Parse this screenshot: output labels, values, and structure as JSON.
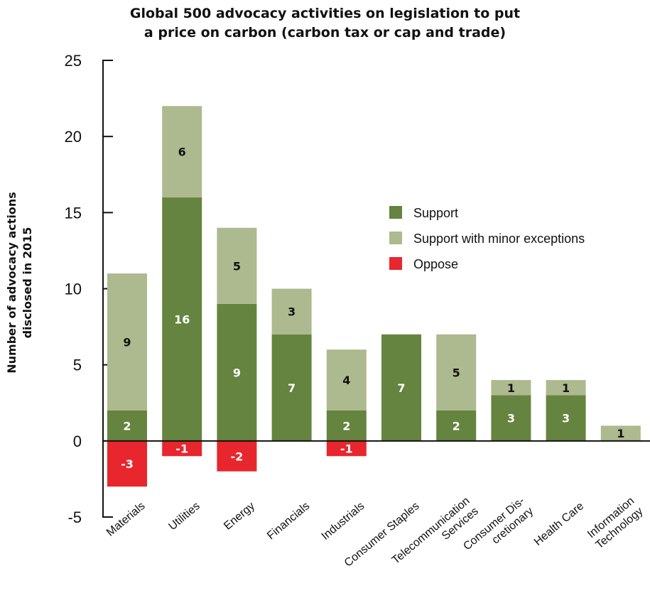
{
  "chart_data": {
    "type": "bar",
    "stacked": true,
    "title": "Global 500 advocacy activities on legislation to put\na price on carbon (carbon tax or cap and trade)",
    "ylabel": [
      "Number of advocacy actions",
      "disclosed in 2015"
    ],
    "ylim": [
      -5,
      25
    ],
    "yticks": [
      -5,
      0,
      5,
      10,
      15,
      20,
      25
    ],
    "grid": false,
    "legend_position": "right, upper middle",
    "categories": [
      [
        "Materials"
      ],
      [
        "Utilities"
      ],
      [
        "Energy"
      ],
      [
        "Financials"
      ],
      [
        "Industrials"
      ],
      [
        "Consumer Staples"
      ],
      [
        "Telecommunication",
        "Services"
      ],
      [
        "Consumer Dis-",
        "cretionary"
      ],
      [
        "Health Care"
      ],
      [
        "Information",
        "Technology"
      ]
    ],
    "series": [
      {
        "name": "Support",
        "color": "#65843f",
        "label_color": "#ffffff",
        "values": [
          2,
          16,
          9,
          7,
          2,
          7,
          2,
          3,
          3,
          0
        ]
      },
      {
        "name": "Support with minor exceptions",
        "color": "#adb98e",
        "label_color": "#111111",
        "values": [
          9,
          6,
          5,
          3,
          4,
          0,
          5,
          1,
          1,
          1
        ]
      },
      {
        "name": "Oppose",
        "color": "#e8262d",
        "label_color": "#ffffff",
        "values": [
          -3,
          -1,
          -2,
          0,
          -1,
          0,
          0,
          0,
          0,
          0
        ]
      }
    ]
  }
}
